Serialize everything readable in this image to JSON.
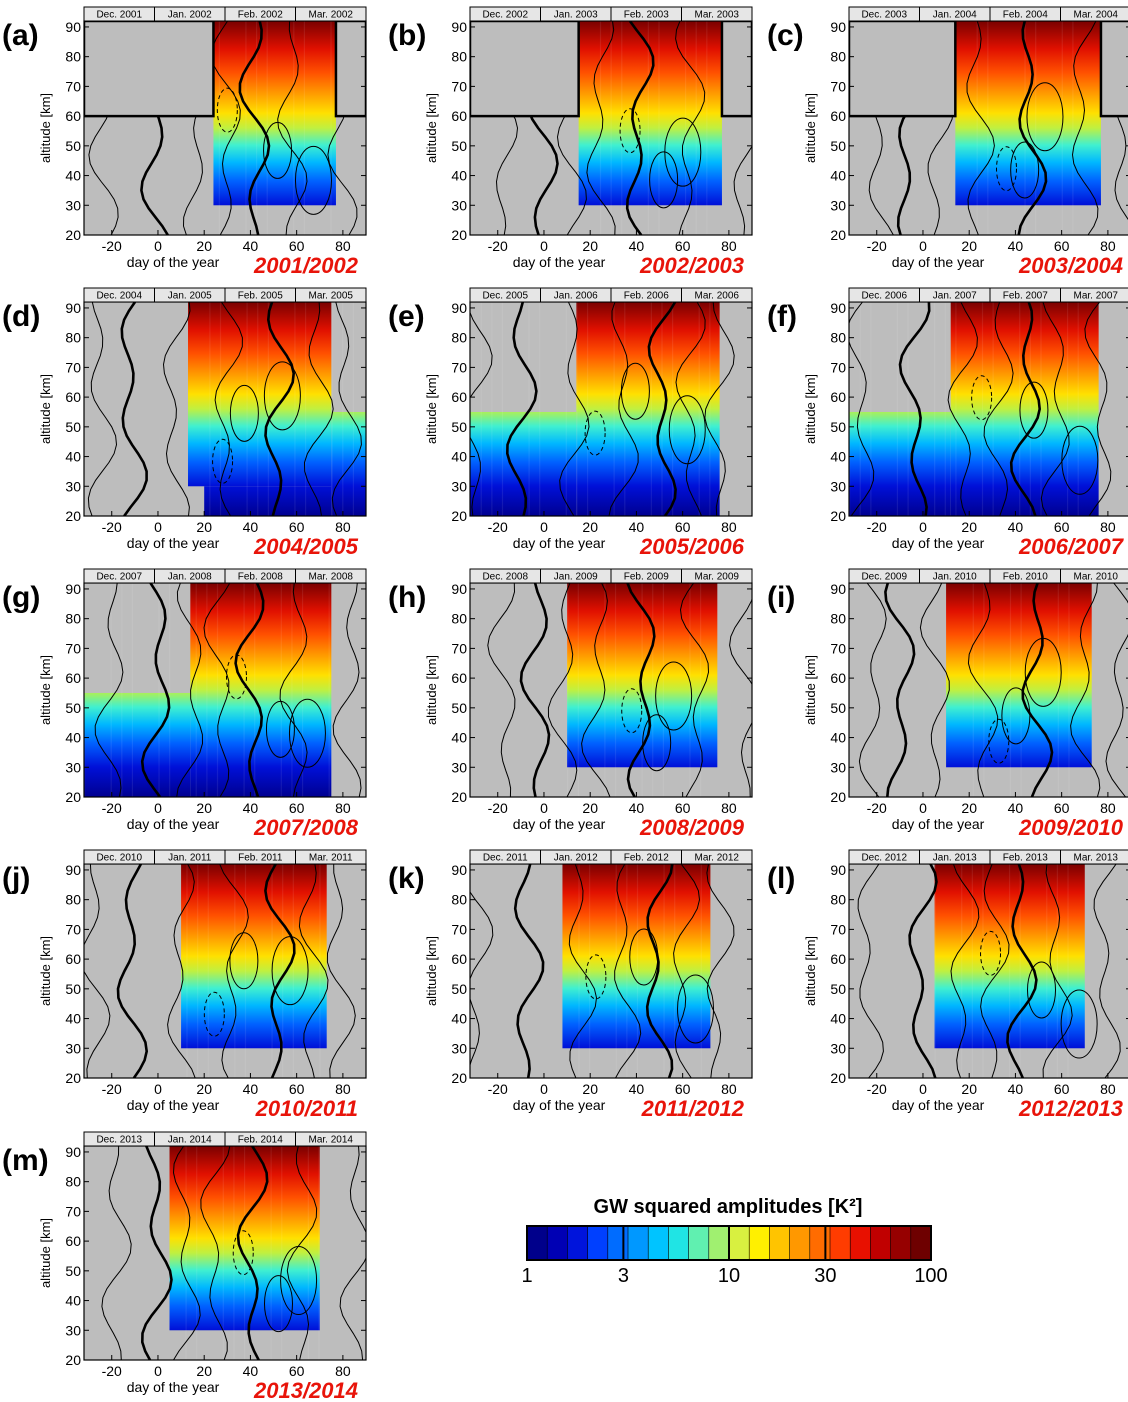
{
  "chart_data": {
    "type": "heatmap",
    "shared_axes": {
      "xlabel": "day of the year",
      "ylabel": "altitude [km]",
      "xlim": [
        -32,
        90
      ],
      "ylim": [
        20,
        92
      ],
      "x_ticks": [
        "-20",
        "0",
        "20",
        "40",
        "60",
        "80"
      ],
      "y_ticks": [
        "20",
        "30",
        "40",
        "50",
        "60",
        "70",
        "80",
        "90"
      ]
    },
    "colorbar": {
      "title": "GW squared amplitudes  [K²]",
      "scale": "log",
      "range": [
        1,
        100
      ],
      "tick_labels": [
        "1",
        "3",
        "10",
        "30",
        "100"
      ],
      "colors": [
        "#00008b",
        "#0000b4",
        "#0014dc",
        "#0040ff",
        "#006cff",
        "#0098ff",
        "#00c4ff",
        "#20e4e4",
        "#60f0b0",
        "#a0f070",
        "#d8f040",
        "#fff000",
        "#ffc400",
        "#ff9800",
        "#ff6c00",
        "#ff3c00",
        "#e81000",
        "#c00000",
        "#960000",
        "#6e0000"
      ]
    },
    "panels": [
      {
        "label": "(a)",
        "season": "2001/2002",
        "months": [
          "Dec. 2001",
          "Jan. 2002",
          "Feb. 2002",
          "Mar. 2002"
        ]
      },
      {
        "label": "(b)",
        "season": "2002/2003",
        "months": [
          "Dec. 2002",
          "Jan. 2003",
          "Feb. 2003",
          "Mar. 2003"
        ]
      },
      {
        "label": "(c)",
        "season": "2003/2004",
        "months": [
          "Dec. 2003",
          "Jan. 2004",
          "Feb. 2004",
          "Mar. 2004"
        ]
      },
      {
        "label": "(d)",
        "season": "2004/2005",
        "months": [
          "Dec. 2004",
          "Jan. 2005",
          "Feb. 2005",
          "Mar. 2005"
        ]
      },
      {
        "label": "(e)",
        "season": "2005/2006",
        "months": [
          "Dec. 2005",
          "Jan. 2006",
          "Feb. 2006",
          "Mar. 2006"
        ]
      },
      {
        "label": "(f)",
        "season": "2006/2007",
        "months": [
          "Dec. 2006",
          "Jan. 2007",
          "Feb. 2007",
          "Mar. 2007"
        ]
      },
      {
        "label": "(g)",
        "season": "2007/2008",
        "months": [
          "Dec. 2007",
          "Jan. 2008",
          "Feb. 2008",
          "Mar. 2008"
        ]
      },
      {
        "label": "(h)",
        "season": "2008/2009",
        "months": [
          "Dec. 2008",
          "Jan. 2009",
          "Feb. 2009",
          "Mar. 2009"
        ]
      },
      {
        "label": "(i)",
        "season": "2009/2010",
        "months": [
          "Dec. 2009",
          "Jan. 2010",
          "Feb. 2010",
          "Mar. 2010"
        ]
      },
      {
        "label": "(j)",
        "season": "2010/2011",
        "months": [
          "Dec. 2010",
          "Jan. 2011",
          "Feb. 2011",
          "Mar. 2011"
        ]
      },
      {
        "label": "(k)",
        "season": "2011/2012",
        "months": [
          "Dec. 2011",
          "Jan. 2012",
          "Feb. 2012",
          "Mar. 2012"
        ]
      },
      {
        "label": "(l)",
        "season": "2012/2013",
        "months": [
          "Dec. 2012",
          "Jan. 2013",
          "Feb. 2013",
          "Mar. 2013"
        ]
      },
      {
        "label": "(m)",
        "season": "2013/2014",
        "months": [
          "Dec. 2013",
          "Jan. 2014",
          "Feb. 2014",
          "Mar. 2014"
        ]
      }
    ]
  }
}
